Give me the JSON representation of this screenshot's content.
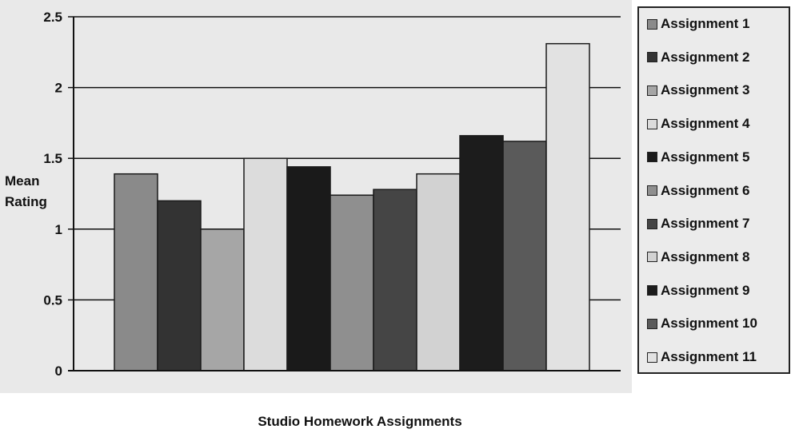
{
  "chart_data": {
    "type": "bar",
    "title": "",
    "xlabel": "Studio Homework Assignments",
    "ylabel_lines": [
      "Mean",
      "Rating"
    ],
    "ylim": [
      0,
      2.5
    ],
    "yticks": [
      "0",
      "0.5",
      "1",
      "1.5",
      "2",
      "2.5"
    ],
    "ytick_values": [
      0,
      0.5,
      1,
      1.5,
      2,
      2.5
    ],
    "grid": true,
    "legend_position": "right",
    "series": [
      {
        "name": "Assignment 1",
        "value": 1.39,
        "color": "#8a8a8a"
      },
      {
        "name": "Assignment 2",
        "value": 1.2,
        "color": "#333333"
      },
      {
        "name": "Assignment 3",
        "value": 1.0,
        "color": "#a6a6a6"
      },
      {
        "name": "Assignment 4",
        "value": 1.5,
        "color": "#dcdcdc"
      },
      {
        "name": "Assignment 5",
        "value": 1.44,
        "color": "#1a1a1a"
      },
      {
        "name": "Assignment 6",
        "value": 1.24,
        "color": "#8f8f8f"
      },
      {
        "name": "Assignment 7",
        "value": 1.28,
        "color": "#454545"
      },
      {
        "name": "Assignment 8",
        "value": 1.39,
        "color": "#d2d2d2"
      },
      {
        "name": "Assignment 9",
        "value": 1.66,
        "color": "#1c1c1c"
      },
      {
        "name": "Assignment 10",
        "value": 1.62,
        "color": "#5a5a5a"
      },
      {
        "name": "Assignment 11",
        "value": 2.31,
        "color": "#e2e2e2"
      }
    ]
  }
}
